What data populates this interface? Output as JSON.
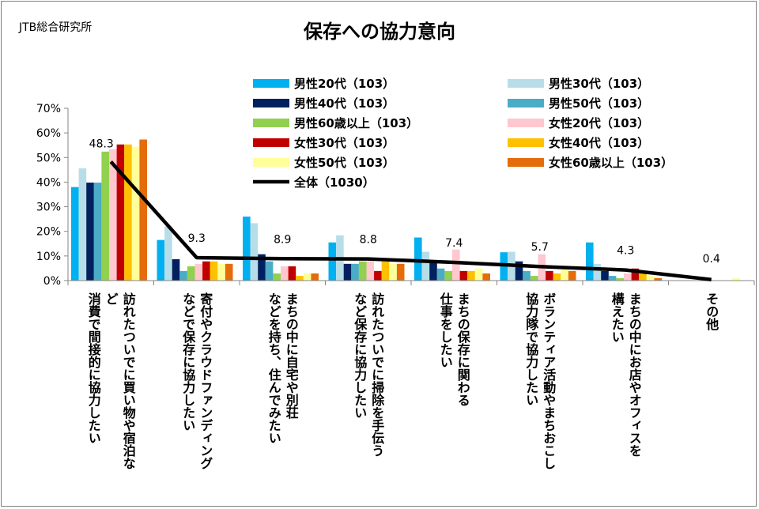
{
  "source": "JTB総合研究所",
  "chart_data": {
    "type": "bar",
    "title": "保存への協力意向",
    "ylim": [
      0,
      70
    ],
    "yticks": [
      "0%",
      "10%",
      "20%",
      "30%",
      "40%",
      "50%",
      "60%",
      "70%"
    ],
    "categories": [
      "訪れたついでに買い物や宿泊など 消費で間接的に協力したい",
      "寄付やクラウドファンディング などで保存に協力したい",
      "まちの中に自宅や別荘 などを持ち、住んでみたい",
      "訪れたついでに掃除を手伝う など保存に協力したい",
      "まちの保存に関わる 仕事をしたい",
      "ボランティア活動やまちおこし 協力隊で協力したい",
      "まちの中にお店やオフィスを 構えたい",
      "その他"
    ],
    "category_lines": [
      [
        "訪れたついでに買い物や宿泊な",
        "ど",
        "消費で間接的に協力したい"
      ],
      [
        "寄付やクラウドファンディング",
        "などで保存に協力したい"
      ],
      [
        "まちの中に自宅や別荘",
        "などを持ち、住んでみたい"
      ],
      [
        "訪れたついでに掃除を手伝う",
        "など保存に協力したい"
      ],
      [
        "まちの保存に関わる",
        "仕事をしたい"
      ],
      [
        "ボランティア活動やまちおこし",
        "協力隊で協力したい"
      ],
      [
        "まちの中にお店やオフィスを",
        "構えたい"
      ],
      [
        "その他"
      ]
    ],
    "series": [
      {
        "name": "男性20代（103）",
        "color": "#00b0f0",
        "values": [
          38,
          16.5,
          26,
          15.5,
          17.5,
          11.5,
          15.5,
          0
        ]
      },
      {
        "name": "男性30代（103）",
        "color": "#b7dee8",
        "values": [
          45.6,
          22,
          23.3,
          18.4,
          11.7,
          11.7,
          6.8,
          0
        ]
      },
      {
        "name": "男性40代（103）",
        "color": "#002060",
        "values": [
          39.8,
          8.7,
          10.7,
          6.8,
          7.8,
          7.8,
          3.9,
          0
        ]
      },
      {
        "name": "男性50代（103）",
        "color": "#4bacc6",
        "values": [
          39.8,
          3.9,
          7.8,
          6.8,
          4.9,
          3.9,
          1.9,
          0
        ]
      },
      {
        "name": "男性60歳以上（103）",
        "color": "#92d050",
        "values": [
          52.4,
          5.8,
          2.9,
          7.8,
          3.9,
          1.9,
          1,
          0
        ]
      },
      {
        "name": "女性20代（103）",
        "color": "#ffc7ce",
        "values": [
          53.4,
          6.8,
          5.8,
          7.8,
          12.6,
          10.7,
          2.9,
          0
        ]
      },
      {
        "name": "女性30代（103）",
        "color": "#c00000",
        "values": [
          55.3,
          7.8,
          5.8,
          3.9,
          3.9,
          3.9,
          4.9,
          0
        ]
      },
      {
        "name": "女性40代（103）",
        "color": "#ffc000",
        "values": [
          55.3,
          7.8,
          1.9,
          7.8,
          3.9,
          2.9,
          2.9,
          0
        ]
      },
      {
        "name": "女性50代（103）",
        "color": "#ffff99",
        "values": [
          54.4,
          6.8,
          2.9,
          6.8,
          4.9,
          4.9,
          1.9,
          1
        ]
      },
      {
        "name": "女性60歳以上（103）",
        "color": "#e46c0a",
        "values": [
          57.3,
          6.8,
          2.9,
          6.8,
          2.9,
          3.9,
          1,
          0
        ]
      }
    ],
    "total": {
      "name": "全体（1030）",
      "color": "#000000",
      "values": [
        48.3,
        9.3,
        8.9,
        8.8,
        7.4,
        5.7,
        4.3,
        0.4
      ]
    },
    "total_labels": [
      "48.3",
      "9.3",
      "8.9",
      "8.8",
      "7.4",
      "5.7",
      "4.3",
      "0.4"
    ],
    "legend_placement": "top-center",
    "grid": false
  }
}
